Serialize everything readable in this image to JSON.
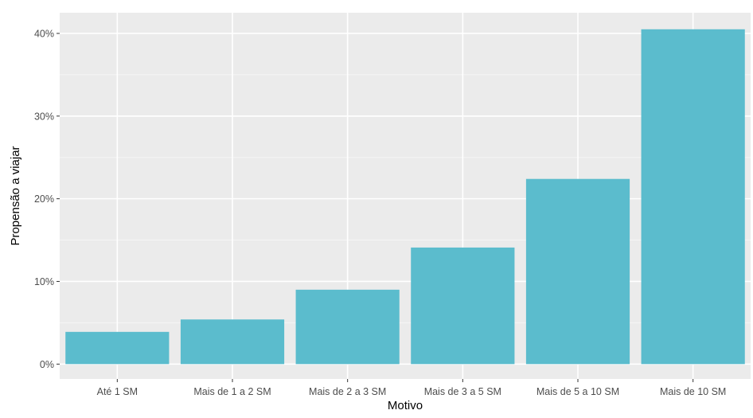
{
  "chart_data": {
    "type": "bar",
    "title": "",
    "xlabel": "Motivo",
    "ylabel": "Propensão a viajar",
    "categories": [
      "Até 1 SM",
      "Mais de 1 a 2 SM",
      "Mais de 2 a 3 SM",
      "Mais de 3 a 5 SM",
      "Mais de 5 a 10 SM",
      "Mais de 10 SM"
    ],
    "values": [
      3.9,
      5.4,
      9.0,
      14.1,
      22.4,
      40.5
    ],
    "value_unit": "%",
    "ylim": [
      -1.8,
      42.5
    ],
    "yticks": [
      0,
      10,
      20,
      30,
      40
    ],
    "ytick_labels": [
      "0%",
      "10%",
      "20%",
      "30%",
      "40%"
    ],
    "grid": true,
    "legend": "none",
    "colors": {
      "bar": "#5bbccd",
      "panel": "#ebebeb",
      "grid_major": "#ffffff",
      "grid_minor": "#f5f5f5",
      "tick_text": "#4d4d4d",
      "axis_title": "#000000"
    }
  }
}
